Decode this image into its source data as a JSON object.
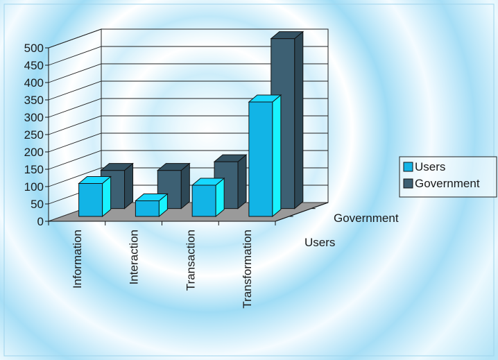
{
  "chart_data": {
    "type": "bar",
    "categories": [
      "Information",
      "Interaction",
      "Transaction",
      "Transformation"
    ],
    "series": [
      {
        "name": "Users",
        "values": [
          95,
          45,
          90,
          330
        ]
      },
      {
        "name": "Government",
        "values": [
          110,
          110,
          135,
          490
        ]
      }
    ],
    "depth_labels": [
      "Government",
      "Users"
    ],
    "yticks": [
      0,
      50,
      100,
      150,
      200,
      250,
      300,
      350,
      400,
      450,
      500
    ],
    "ylim": [
      0,
      500
    ],
    "legend": "right",
    "grid": true,
    "colors": {
      "Users": "#12b4e6",
      "Government": "#3d6073"
    }
  }
}
